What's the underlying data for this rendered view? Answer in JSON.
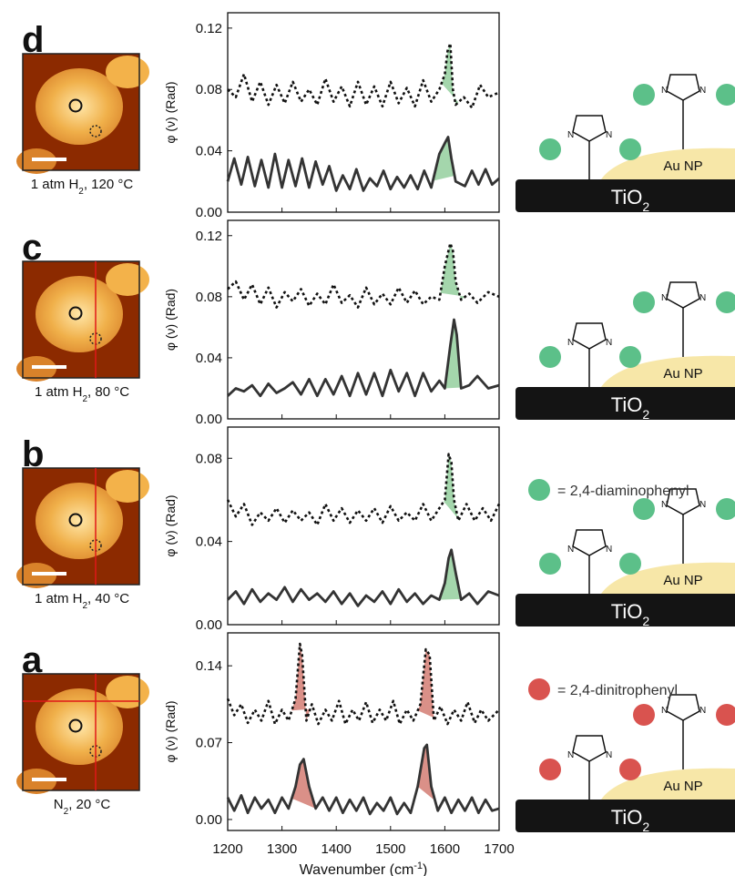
{
  "panels": [
    {
      "letter": "d",
      "condition": {
        "main": "1 atm H",
        "sub": "2",
        "rest": ", 120 °C"
      },
      "afm": {
        "crosshair": "none"
      },
      "chart": {
        "ylabel": "φ (ν) (Rad)",
        "yticks": [
          "0.00",
          "0.04",
          "0.08",
          "0.12"
        ],
        "ylim": [
          0,
          0.13
        ],
        "series": [
          {
            "style": "dotted",
            "x": [
              1200,
              1215,
              1230,
              1245,
              1260,
              1275,
              1290,
              1305,
              1320,
              1335,
              1350,
              1365,
              1380,
              1395,
              1410,
              1425,
              1440,
              1455,
              1470,
              1485,
              1500,
              1515,
              1530,
              1545,
              1560,
              1575,
              1590,
              1600,
              1605,
              1610,
              1615,
              1620,
              1635,
              1650,
              1665,
              1680,
              1700
            ],
            "y": [
              0.08,
              0.075,
              0.09,
              0.072,
              0.085,
              0.07,
              0.083,
              0.071,
              0.085,
              0.072,
              0.08,
              0.07,
              0.087,
              0.072,
              0.082,
              0.069,
              0.085,
              0.07,
              0.082,
              0.069,
              0.085,
              0.071,
              0.081,
              0.069,
              0.086,
              0.072,
              0.08,
              0.09,
              0.105,
              0.11,
              0.08,
              0.07,
              0.075,
              0.068,
              0.083,
              0.075,
              0.078
            ]
          },
          {
            "style": "solid",
            "x": [
              1200,
              1212,
              1225,
              1237,
              1250,
              1262,
              1275,
              1287,
              1300,
              1312,
              1325,
              1337,
              1350,
              1362,
              1375,
              1387,
              1400,
              1412,
              1425,
              1437,
              1450,
              1462,
              1475,
              1487,
              1500,
              1512,
              1525,
              1537,
              1550,
              1562,
              1575,
              1590,
              1600,
              1606,
              1612,
              1620,
              1637,
              1650,
              1662,
              1675,
              1687,
              1700
            ],
            "y": [
              0.02,
              0.035,
              0.018,
              0.036,
              0.017,
              0.034,
              0.016,
              0.038,
              0.016,
              0.034,
              0.017,
              0.035,
              0.016,
              0.033,
              0.018,
              0.03,
              0.014,
              0.024,
              0.015,
              0.028,
              0.014,
              0.022,
              0.017,
              0.027,
              0.015,
              0.023,
              0.016,
              0.024,
              0.015,
              0.027,
              0.016,
              0.038,
              0.045,
              0.049,
              0.035,
              0.02,
              0.017,
              0.027,
              0.018,
              0.028,
              0.018,
              0.022
            ]
          }
        ],
        "peaks": [
          {
            "series": 0,
            "from": 1594,
            "to": 1625,
            "color": "#9fd4a8"
          },
          {
            "series": 1,
            "from": 1578,
            "to": 1618,
            "color": "#9fd4a8"
          }
        ]
      },
      "scheme": {
        "dot_color": "#5cc089",
        "au_label": "Au NP",
        "tio2_main": "TiO",
        "tio2_sub": "2"
      }
    },
    {
      "letter": "c",
      "condition": {
        "main": "1 atm H",
        "sub": "2",
        "rest": ", 80 °C"
      },
      "afm": {
        "crosshair": "vertical"
      },
      "chart": {
        "ylabel": "φ (ν) (Rad)",
        "yticks": [
          "0.00",
          "0.04",
          "0.08",
          "0.12"
        ],
        "ylim": [
          0,
          0.13
        ],
        "series": [
          {
            "style": "dotted",
            "x": [
              1200,
              1215,
              1230,
              1245,
              1260,
              1275,
              1290,
              1305,
              1320,
              1335,
              1350,
              1365,
              1380,
              1395,
              1410,
              1425,
              1440,
              1455,
              1470,
              1485,
              1500,
              1515,
              1530,
              1545,
              1560,
              1575,
              1590,
              1600,
              1610,
              1615,
              1620,
              1630,
              1645,
              1660,
              1680,
              1700
            ],
            "y": [
              0.085,
              0.09,
              0.078,
              0.088,
              0.075,
              0.086,
              0.073,
              0.083,
              0.077,
              0.085,
              0.074,
              0.082,
              0.075,
              0.088,
              0.076,
              0.081,
              0.073,
              0.086,
              0.075,
              0.082,
              0.075,
              0.086,
              0.076,
              0.084,
              0.075,
              0.08,
              0.078,
              0.1,
              0.115,
              0.11,
              0.09,
              0.078,
              0.082,
              0.076,
              0.083,
              0.08
            ]
          },
          {
            "style": "solid",
            "x": [
              1200,
              1215,
              1230,
              1245,
              1260,
              1275,
              1290,
              1305,
              1320,
              1335,
              1350,
              1365,
              1380,
              1395,
              1410,
              1425,
              1440,
              1455,
              1470,
              1485,
              1500,
              1515,
              1530,
              1545,
              1560,
              1575,
              1590,
              1600,
              1610,
              1617,
              1622,
              1630,
              1645,
              1660,
              1680,
              1700
            ],
            "y": [
              0.015,
              0.02,
              0.018,
              0.022,
              0.015,
              0.023,
              0.017,
              0.02,
              0.024,
              0.016,
              0.026,
              0.015,
              0.026,
              0.016,
              0.028,
              0.015,
              0.03,
              0.016,
              0.03,
              0.015,
              0.032,
              0.018,
              0.03,
              0.015,
              0.03,
              0.018,
              0.025,
              0.02,
              0.048,
              0.065,
              0.055,
              0.02,
              0.022,
              0.028,
              0.02,
              0.022
            ]
          }
        ],
        "peaks": [
          {
            "series": 0,
            "from": 1592,
            "to": 1638,
            "color": "#9fd4a8"
          },
          {
            "series": 1,
            "from": 1600,
            "to": 1635,
            "color": "#9fd4a8"
          }
        ]
      },
      "scheme": {
        "dot_color": "#5cc089",
        "au_label": "Au NP",
        "tio2_main": "TiO",
        "tio2_sub": "2"
      }
    },
    {
      "letter": "b",
      "condition": {
        "main": "1 atm H",
        "sub": "2",
        "rest": ", 40 °C"
      },
      "afm": {
        "crosshair": "vertical"
      },
      "chart": {
        "ylabel": "φ (ν) (Rad)",
        "yticks": [
          "0.00",
          "0.04",
          "0.08"
        ],
        "ylim": [
          0,
          0.095
        ],
        "series": [
          {
            "style": "dotted",
            "x": [
              1200,
              1215,
              1230,
              1245,
              1260,
              1275,
              1290,
              1305,
              1320,
              1335,
              1350,
              1365,
              1380,
              1395,
              1410,
              1425,
              1440,
              1455,
              1470,
              1485,
              1500,
              1515,
              1530,
              1545,
              1560,
              1575,
              1590,
              1600,
              1607,
              1612,
              1617,
              1625,
              1640,
              1655,
              1670,
              1685,
              1700
            ],
            "y": [
              0.06,
              0.052,
              0.058,
              0.048,
              0.054,
              0.05,
              0.056,
              0.049,
              0.055,
              0.05,
              0.054,
              0.048,
              0.058,
              0.05,
              0.056,
              0.049,
              0.055,
              0.05,
              0.056,
              0.049,
              0.057,
              0.05,
              0.054,
              0.05,
              0.058,
              0.05,
              0.056,
              0.06,
              0.082,
              0.078,
              0.06,
              0.05,
              0.058,
              0.05,
              0.056,
              0.05,
              0.058
            ]
          },
          {
            "style": "solid",
            "x": [
              1200,
              1215,
              1230,
              1245,
              1260,
              1275,
              1290,
              1305,
              1320,
              1335,
              1350,
              1365,
              1380,
              1395,
              1410,
              1425,
              1440,
              1455,
              1470,
              1485,
              1500,
              1515,
              1530,
              1545,
              1560,
              1575,
              1590,
              1600,
              1607,
              1612,
              1620,
              1630,
              1645,
              1660,
              1680,
              1700
            ],
            "y": [
              0.012,
              0.016,
              0.01,
              0.017,
              0.011,
              0.015,
              0.012,
              0.018,
              0.011,
              0.017,
              0.012,
              0.015,
              0.011,
              0.016,
              0.01,
              0.015,
              0.009,
              0.014,
              0.011,
              0.016,
              0.01,
              0.017,
              0.011,
              0.015,
              0.01,
              0.014,
              0.012,
              0.02,
              0.032,
              0.036,
              0.025,
              0.012,
              0.015,
              0.01,
              0.016,
              0.014
            ]
          }
        ],
        "peaks": [
          {
            "series": 0,
            "from": 1598,
            "to": 1626,
            "color": "#9fd4a8"
          },
          {
            "series": 1,
            "from": 1590,
            "to": 1632,
            "color": "#9fd4a8"
          }
        ]
      },
      "scheme": {
        "dot_color": "#5cc089",
        "au_label": "Au NP",
        "tio2_main": "TiO",
        "tio2_sub": "2"
      }
    },
    {
      "letter": "a",
      "condition": {
        "main": "N",
        "sub": "2",
        "rest": ", 20 °C"
      },
      "afm": {
        "crosshair": "both"
      },
      "chart": {
        "ylabel": "φ (ν) (Rad)",
        "yticks": [
          "0.00",
          "0.07",
          "0.14"
        ],
        "ylim": [
          -0.01,
          0.17
        ],
        "xticks": [
          "1200",
          "1300",
          "1400",
          "1500",
          "1600",
          "1700"
        ],
        "xlim": [
          1200,
          1700
        ],
        "xlabel": "Wavenumber (cm",
        "xlabel_sup": "-1",
        "xlabel_end": ")",
        "series": [
          {
            "style": "dotted",
            "x": [
              1200,
              1212,
              1225,
              1237,
              1250,
              1262,
              1275,
              1287,
              1300,
              1312,
              1325,
              1333,
              1337,
              1345,
              1355,
              1367,
              1380,
              1392,
              1405,
              1417,
              1430,
              1442,
              1455,
              1467,
              1480,
              1492,
              1505,
              1517,
              1530,
              1542,
              1555,
              1565,
              1572,
              1580,
              1592,
              1605,
              1617,
              1630,
              1642,
              1655,
              1667,
              1680,
              1700
            ],
            "y": [
              0.11,
              0.095,
              0.105,
              0.088,
              0.1,
              0.09,
              0.108,
              0.087,
              0.1,
              0.09,
              0.11,
              0.16,
              0.15,
              0.09,
              0.105,
              0.087,
              0.1,
              0.09,
              0.108,
              0.087,
              0.1,
              0.09,
              0.107,
              0.088,
              0.1,
              0.09,
              0.108,
              0.087,
              0.1,
              0.09,
              0.105,
              0.155,
              0.15,
              0.09,
              0.103,
              0.087,
              0.1,
              0.09,
              0.107,
              0.088,
              0.1,
              0.09,
              0.1
            ]
          },
          {
            "style": "solid",
            "x": [
              1200,
              1212,
              1225,
              1237,
              1250,
              1262,
              1275,
              1287,
              1300,
              1312,
              1325,
              1333,
              1340,
              1350,
              1362,
              1375,
              1387,
              1400,
              1412,
              1425,
              1437,
              1450,
              1462,
              1475,
              1487,
              1500,
              1512,
              1525,
              1537,
              1550,
              1562,
              1567,
              1575,
              1587,
              1600,
              1612,
              1625,
              1637,
              1650,
              1662,
              1675,
              1687,
              1700
            ],
            "y": [
              0.02,
              0.008,
              0.022,
              0.006,
              0.02,
              0.01,
              0.018,
              0.006,
              0.02,
              0.01,
              0.03,
              0.05,
              0.055,
              0.03,
              0.01,
              0.02,
              0.008,
              0.02,
              0.006,
              0.018,
              0.008,
              0.02,
              0.005,
              0.015,
              0.008,
              0.02,
              0.005,
              0.015,
              0.006,
              0.03,
              0.065,
              0.068,
              0.03,
              0.008,
              0.02,
              0.006,
              0.018,
              0.008,
              0.02,
              0.006,
              0.018,
              0.008,
              0.01
            ]
          }
        ],
        "peaks": [
          {
            "series": 0,
            "from": 1318,
            "to": 1352,
            "color": "#d88a82"
          },
          {
            "series": 0,
            "from": 1550,
            "to": 1582,
            "color": "#d88a82"
          },
          {
            "series": 1,
            "from": 1318,
            "to": 1362,
            "color": "#d88a82"
          },
          {
            "series": 1,
            "from": 1550,
            "to": 1582,
            "color": "#d88a82"
          }
        ]
      },
      "scheme": {
        "dot_color": "#d9534f",
        "au_label": "Au NP",
        "tio2_main": "TiO",
        "tio2_sub": "2"
      }
    }
  ],
  "legend": [
    {
      "color": "#5cc089",
      "label": "= 2,4-diaminophenyl"
    },
    {
      "color": "#d9534f",
      "label": "= 2,4-dinitrophenyl"
    }
  ],
  "colors": {
    "afm_dark": "#8c2a00",
    "afm_light": "#ffe6a8",
    "crosshair": "#e01818",
    "au": "#f7e7a8",
    "tio2": "#141414"
  }
}
